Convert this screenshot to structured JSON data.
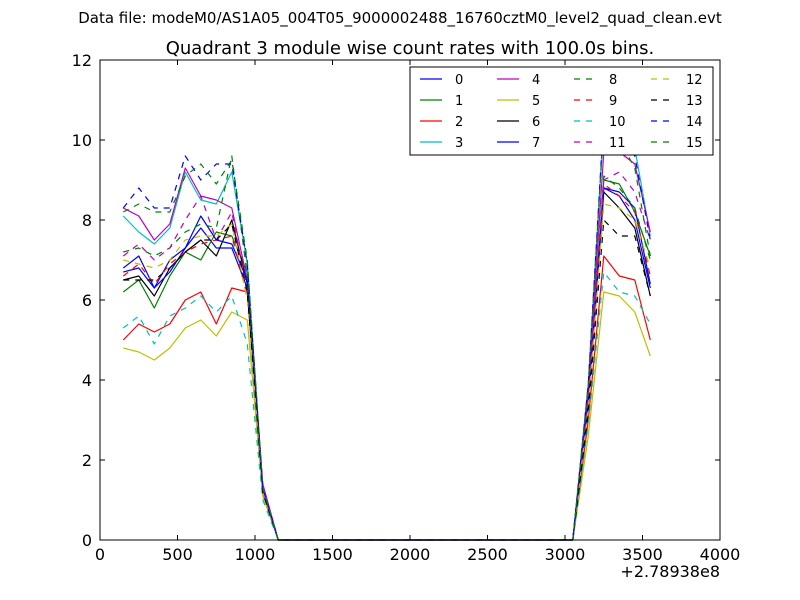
{
  "chart_data": {
    "type": "line",
    "suptitle": "Data file: modeM0/AS1A05_004T05_9000002488_16760cztM0_level2_quad_clean.evt",
    "title": "Quadrant 3 module wise count rates with 100.0s bins.",
    "xlabel": "",
    "ylabel": "",
    "x_offset_label": "+2.78938e8",
    "xlim": [
      0,
      4000
    ],
    "ylim": [
      0,
      12
    ],
    "xticks": [
      0,
      500,
      1000,
      1500,
      2000,
      2500,
      3000,
      3500,
      4000
    ],
    "yticks": [
      0,
      2,
      4,
      6,
      8,
      10,
      12
    ],
    "grid": false,
    "legend": {
      "placement": "top-right",
      "columns": 4
    },
    "x": [
      150,
      250,
      350,
      450,
      550,
      650,
      750,
      850,
      950,
      1050,
      1150,
      1250,
      1350,
      1450,
      1550,
      1650,
      1750,
      1850,
      1950,
      2050,
      2150,
      2250,
      2350,
      2450,
      2550,
      2650,
      2750,
      2850,
      2950,
      3050,
      3150,
      3250,
      3350,
      3450,
      3550
    ],
    "series": [
      {
        "name": "0",
        "color": "#0000ff",
        "dash": "solid",
        "values": [
          6.7,
          6.8,
          6.3,
          7.0,
          7.3,
          7.8,
          7.3,
          7.3,
          6.3,
          1.2,
          0,
          0,
          0,
          0,
          0,
          0,
          0,
          0,
          0,
          0,
          0,
          0,
          0,
          0,
          0,
          0,
          0,
          0,
          0,
          0,
          3.5,
          8.8,
          8.6,
          8.0,
          6.3
        ]
      },
      {
        "name": "1",
        "color": "#008000",
        "dash": "solid",
        "values": [
          6.2,
          6.5,
          5.8,
          6.6,
          7.2,
          7.0,
          7.7,
          7.6,
          6.7,
          1.3,
          0,
          0,
          0,
          0,
          0,
          0,
          0,
          0,
          0,
          0,
          0,
          0,
          0,
          0,
          0,
          0,
          0,
          0,
          0,
          0,
          3.6,
          9.0,
          8.9,
          8.2,
          7.1
        ]
      },
      {
        "name": "2",
        "color": "#ff0000",
        "dash": "solid",
        "values": [
          5.0,
          5.4,
          5.2,
          5.4,
          6.0,
          6.2,
          5.4,
          6.3,
          6.2,
          1.2,
          0,
          0,
          0,
          0,
          0,
          0,
          0,
          0,
          0,
          0,
          0,
          0,
          0,
          0,
          0,
          0,
          0,
          0,
          0,
          0,
          3.0,
          7.1,
          6.6,
          6.5,
          5.0
        ]
      },
      {
        "name": "3",
        "color": "#00bfbf",
        "dash": "solid",
        "values": [
          8.1,
          7.7,
          7.4,
          7.8,
          9.2,
          8.5,
          8.4,
          9.2,
          6.9,
          1.3,
          0,
          0,
          0,
          0,
          0,
          0,
          0,
          0,
          0,
          0,
          0,
          0,
          0,
          0,
          0,
          0,
          0,
          0,
          0,
          0,
          3.9,
          10.4,
          10.4,
          9.8,
          7.6
        ]
      },
      {
        "name": "4",
        "color": "#bf00bf",
        "dash": "solid",
        "values": [
          8.3,
          8.1,
          7.5,
          7.9,
          9.3,
          8.6,
          8.5,
          8.3,
          6.5,
          1.4,
          0,
          0,
          0,
          0,
          0,
          0,
          0,
          0,
          0,
          0,
          0,
          0,
          0,
          0,
          0,
          0,
          0,
          0,
          0,
          0,
          3.8,
          9.7,
          9.7,
          9.4,
          7.7
        ]
      },
      {
        "name": "5",
        "color": "#bfbf00",
        "dash": "solid",
        "values": [
          4.8,
          4.7,
          4.5,
          4.8,
          5.3,
          5.5,
          5.1,
          5.7,
          5.5,
          1.1,
          0,
          0,
          0,
          0,
          0,
          0,
          0,
          0,
          0,
          0,
          0,
          0,
          0,
          0,
          0,
          0,
          0,
          0,
          0,
          0,
          2.6,
          6.2,
          6.1,
          5.7,
          4.6
        ]
      },
      {
        "name": "6",
        "color": "#000000",
        "dash": "solid",
        "values": [
          6.5,
          6.6,
          6.1,
          6.8,
          7.2,
          7.5,
          7.1,
          8.0,
          6.4,
          1.2,
          0,
          0,
          0,
          0,
          0,
          0,
          0,
          0,
          0,
          0,
          0,
          0,
          0,
          0,
          0,
          0,
          0,
          0,
          0,
          0,
          3.4,
          8.7,
          8.3,
          7.8,
          6.1
        ]
      },
      {
        "name": "7",
        "color": "#0000ff",
        "dash": "solid",
        "values": [
          6.8,
          7.1,
          6.3,
          6.7,
          7.3,
          8.1,
          7.5,
          7.4,
          6.5,
          1.2,
          0,
          0,
          0,
          0,
          0,
          0,
          0,
          0,
          0,
          0,
          0,
          0,
          0,
          0,
          0,
          0,
          0,
          0,
          0,
          0,
          3.5,
          8.8,
          8.7,
          8.3,
          6.4
        ]
      },
      {
        "name": "8",
        "color": "#008000",
        "dash": "dashed",
        "values": [
          7.2,
          7.3,
          7.1,
          7.3,
          7.7,
          7.9,
          7.8,
          9.6,
          6.6,
          1.2,
          0,
          0,
          0,
          0,
          0,
          0,
          0,
          0,
          0,
          0,
          0,
          0,
          0,
          0,
          0,
          0,
          0,
          0,
          0,
          0,
          3.6,
          9.1,
          8.8,
          8.3,
          7.0
        ]
      },
      {
        "name": "9",
        "color": "#ff0000",
        "dash": "dashed",
        "values": [
          6.6,
          6.9,
          6.4,
          6.9,
          7.2,
          7.4,
          7.5,
          7.6,
          6.1,
          1.2,
          0,
          0,
          0,
          0,
          0,
          0,
          0,
          0,
          0,
          0,
          0,
          0,
          0,
          0,
          0,
          0,
          0,
          0,
          0,
          0,
          3.5,
          8.9,
          8.6,
          8.2,
          6.6
        ]
      },
      {
        "name": "10",
        "color": "#00bfbf",
        "dash": "dashed",
        "values": [
          5.3,
          5.6,
          4.9,
          5.6,
          5.8,
          6.1,
          5.7,
          6.1,
          4.9,
          1.0,
          0,
          0,
          0,
          0,
          0,
          0,
          0,
          0,
          0,
          0,
          0,
          0,
          0,
          0,
          0,
          0,
          0,
          0,
          0,
          0,
          2.9,
          6.7,
          6.2,
          6.1,
          5.4
        ]
      },
      {
        "name": "11",
        "color": "#bf00bf",
        "dash": "dashed",
        "values": [
          7.1,
          7.4,
          7.0,
          7.3,
          8.0,
          8.6,
          7.5,
          8.2,
          6.2,
          1.3,
          0,
          0,
          0,
          0,
          0,
          0,
          0,
          0,
          0,
          0,
          0,
          0,
          0,
          0,
          0,
          0,
          0,
          0,
          0,
          0,
          3.7,
          9.0,
          9.2,
          8.7,
          7.5
        ]
      },
      {
        "name": "12",
        "color": "#bfbf00",
        "dash": "dashed",
        "values": [
          7.0,
          6.9,
          6.8,
          7.0,
          7.5,
          7.6,
          7.6,
          7.9,
          6.0,
          1.2,
          0,
          0,
          0,
          0,
          0,
          0,
          0,
          0,
          0,
          0,
          0,
          0,
          0,
          0,
          0,
          0,
          0,
          0,
          0,
          0,
          3.3,
          8.4,
          8.3,
          8.0,
          6.8
        ]
      },
      {
        "name": "13",
        "color": "#000000",
        "dash": "dashed",
        "values": [
          6.5,
          6.5,
          6.5,
          6.8,
          7.2,
          7.5,
          7.5,
          7.9,
          6.2,
          1.2,
          0,
          0,
          0,
          0,
          0,
          0,
          0,
          0,
          0,
          0,
          0,
          0,
          0,
          0,
          0,
          0,
          0,
          0,
          0,
          0,
          3.2,
          8.0,
          7.6,
          7.6,
          6.1
        ]
      },
      {
        "name": "14",
        "color": "#0000ff",
        "dash": "dashed",
        "values": [
          8.3,
          8.8,
          8.3,
          8.3,
          9.6,
          9.0,
          9.4,
          9.4,
          6.9,
          1.3,
          0,
          0,
          0,
          0,
          0,
          0,
          0,
          0,
          0,
          0,
          0,
          0,
          0,
          0,
          0,
          0,
          0,
          0,
          0,
          0,
          3.9,
          10.6,
          10.2,
          9.6,
          7.5
        ]
      },
      {
        "name": "15",
        "color": "#008000",
        "dash": "dashed",
        "values": [
          8.2,
          8.4,
          8.2,
          8.2,
          9.1,
          9.4,
          8.9,
          9.5,
          7.0,
          1.3,
          0,
          0,
          0,
          0,
          0,
          0,
          0,
          0,
          0,
          0,
          0,
          0,
          0,
          0,
          0,
          0,
          0,
          0,
          0,
          0,
          3.9,
          10.5,
          10.0,
          9.3,
          7.1
        ]
      }
    ]
  }
}
